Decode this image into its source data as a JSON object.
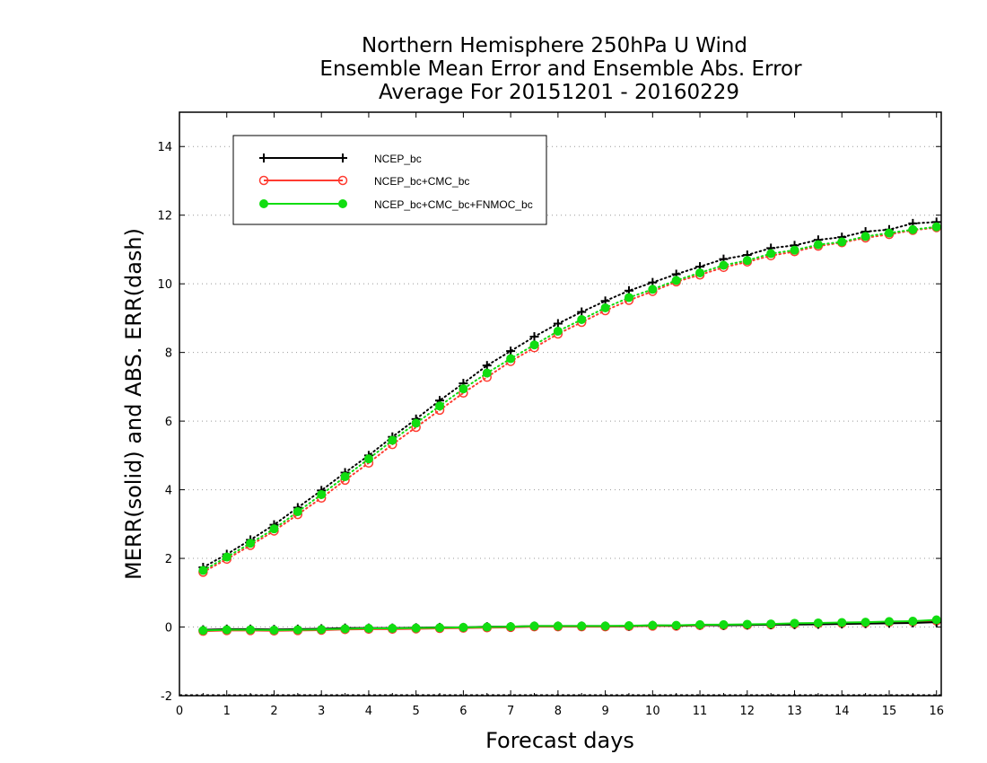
{
  "chart_data": {
    "type": "line",
    "title": [
      "Northern Hemisphere 250hPa U Wind",
      "Ensemble Mean Error and Ensemble Abs. Error",
      "Average For 20151201 - 20160229"
    ],
    "xlabel": "Forecast days",
    "ylabel": "MERR(solid) and ABS. ERR(dash)",
    "xlim": [
      0,
      16.1
    ],
    "ylim": [
      -2,
      15
    ],
    "xticks": [
      "0",
      "1",
      "2",
      "3",
      "4",
      "5",
      "6",
      "7",
      "8",
      "9",
      "10",
      "11",
      "12",
      "13",
      "14",
      "15",
      "16"
    ],
    "yticks": [
      "-2",
      "0",
      "2",
      "4",
      "6",
      "8",
      "10",
      "12",
      "14"
    ],
    "grid": "horizontal dotted",
    "legend_position": "top-left",
    "x": [
      0.5,
      1,
      1.5,
      2,
      2.5,
      3,
      3.5,
      4,
      4.5,
      5,
      5.5,
      6,
      6.5,
      7,
      7.5,
      8,
      8.5,
      9,
      9.5,
      10,
      10.5,
      11,
      11.5,
      12,
      12.5,
      13,
      13.5,
      14,
      14.5,
      15,
      15.5,
      16
    ],
    "series": [
      {
        "name": "NCEP_bc",
        "color": "#000000",
        "marker": "plus",
        "merr": [
          -0.08,
          -0.06,
          -0.06,
          -0.07,
          -0.06,
          -0.05,
          -0.03,
          -0.03,
          -0.03,
          -0.02,
          -0.01,
          -0.01,
          0.01,
          0.01,
          0.03,
          0.03,
          0.03,
          0.03,
          0.03,
          0.05,
          0.04,
          0.06,
          0.05,
          0.06,
          0.07,
          0.07,
          0.08,
          0.09,
          0.1,
          0.11,
          0.12,
          0.14
        ],
        "abs_err": [
          1.74,
          2.12,
          2.54,
          2.98,
          3.48,
          3.98,
          4.5,
          5.0,
          5.54,
          6.06,
          6.6,
          7.1,
          7.62,
          8.04,
          8.46,
          8.84,
          9.18,
          9.5,
          9.8,
          10.04,
          10.28,
          10.5,
          10.72,
          10.84,
          11.04,
          11.12,
          11.28,
          11.36,
          11.52,
          11.58,
          11.76,
          11.8
        ]
      },
      {
        "name": "NCEP_bc+CMC_bc",
        "color": "#ff3b30",
        "marker": "open-circle",
        "merr": [
          -0.12,
          -0.1,
          -0.1,
          -0.11,
          -0.1,
          -0.09,
          -0.07,
          -0.06,
          -0.06,
          -0.05,
          -0.04,
          -0.03,
          -0.02,
          -0.01,
          0.01,
          0.01,
          0.01,
          0.01,
          0.02,
          0.03,
          0.03,
          0.05,
          0.05,
          0.06,
          0.07,
          0.09,
          0.1,
          0.11,
          0.12,
          0.14,
          0.15,
          0.18
        ],
        "abs_err": [
          1.6,
          1.98,
          2.38,
          2.8,
          3.28,
          3.76,
          4.28,
          4.78,
          5.32,
          5.82,
          6.32,
          6.82,
          7.28,
          7.74,
          8.14,
          8.54,
          8.88,
          9.22,
          9.52,
          9.78,
          10.06,
          10.26,
          10.48,
          10.64,
          10.82,
          10.94,
          11.1,
          11.2,
          11.34,
          11.44,
          11.56,
          11.64
        ]
      },
      {
        "name": "NCEP_bc+CMC_bc+FNMOC_bc",
        "color": "#11dd11",
        "marker": "filled-circle",
        "merr": [
          -0.1,
          -0.08,
          -0.08,
          -0.09,
          -0.08,
          -0.07,
          -0.05,
          -0.04,
          -0.04,
          -0.03,
          -0.02,
          -0.01,
          0.0,
          0.01,
          0.03,
          0.03,
          0.03,
          0.03,
          0.04,
          0.05,
          0.05,
          0.07,
          0.07,
          0.08,
          0.09,
          0.11,
          0.12,
          0.13,
          0.14,
          0.16,
          0.17,
          0.21
        ],
        "abs_err": [
          1.65,
          2.04,
          2.44,
          2.86,
          3.36,
          3.86,
          4.38,
          4.9,
          5.44,
          5.94,
          6.44,
          6.94,
          7.4,
          7.82,
          8.22,
          8.62,
          8.96,
          9.3,
          9.6,
          9.84,
          10.1,
          10.32,
          10.54,
          10.68,
          10.88,
          10.98,
          11.14,
          11.22,
          11.38,
          11.48,
          11.58,
          11.66
        ]
      }
    ]
  }
}
